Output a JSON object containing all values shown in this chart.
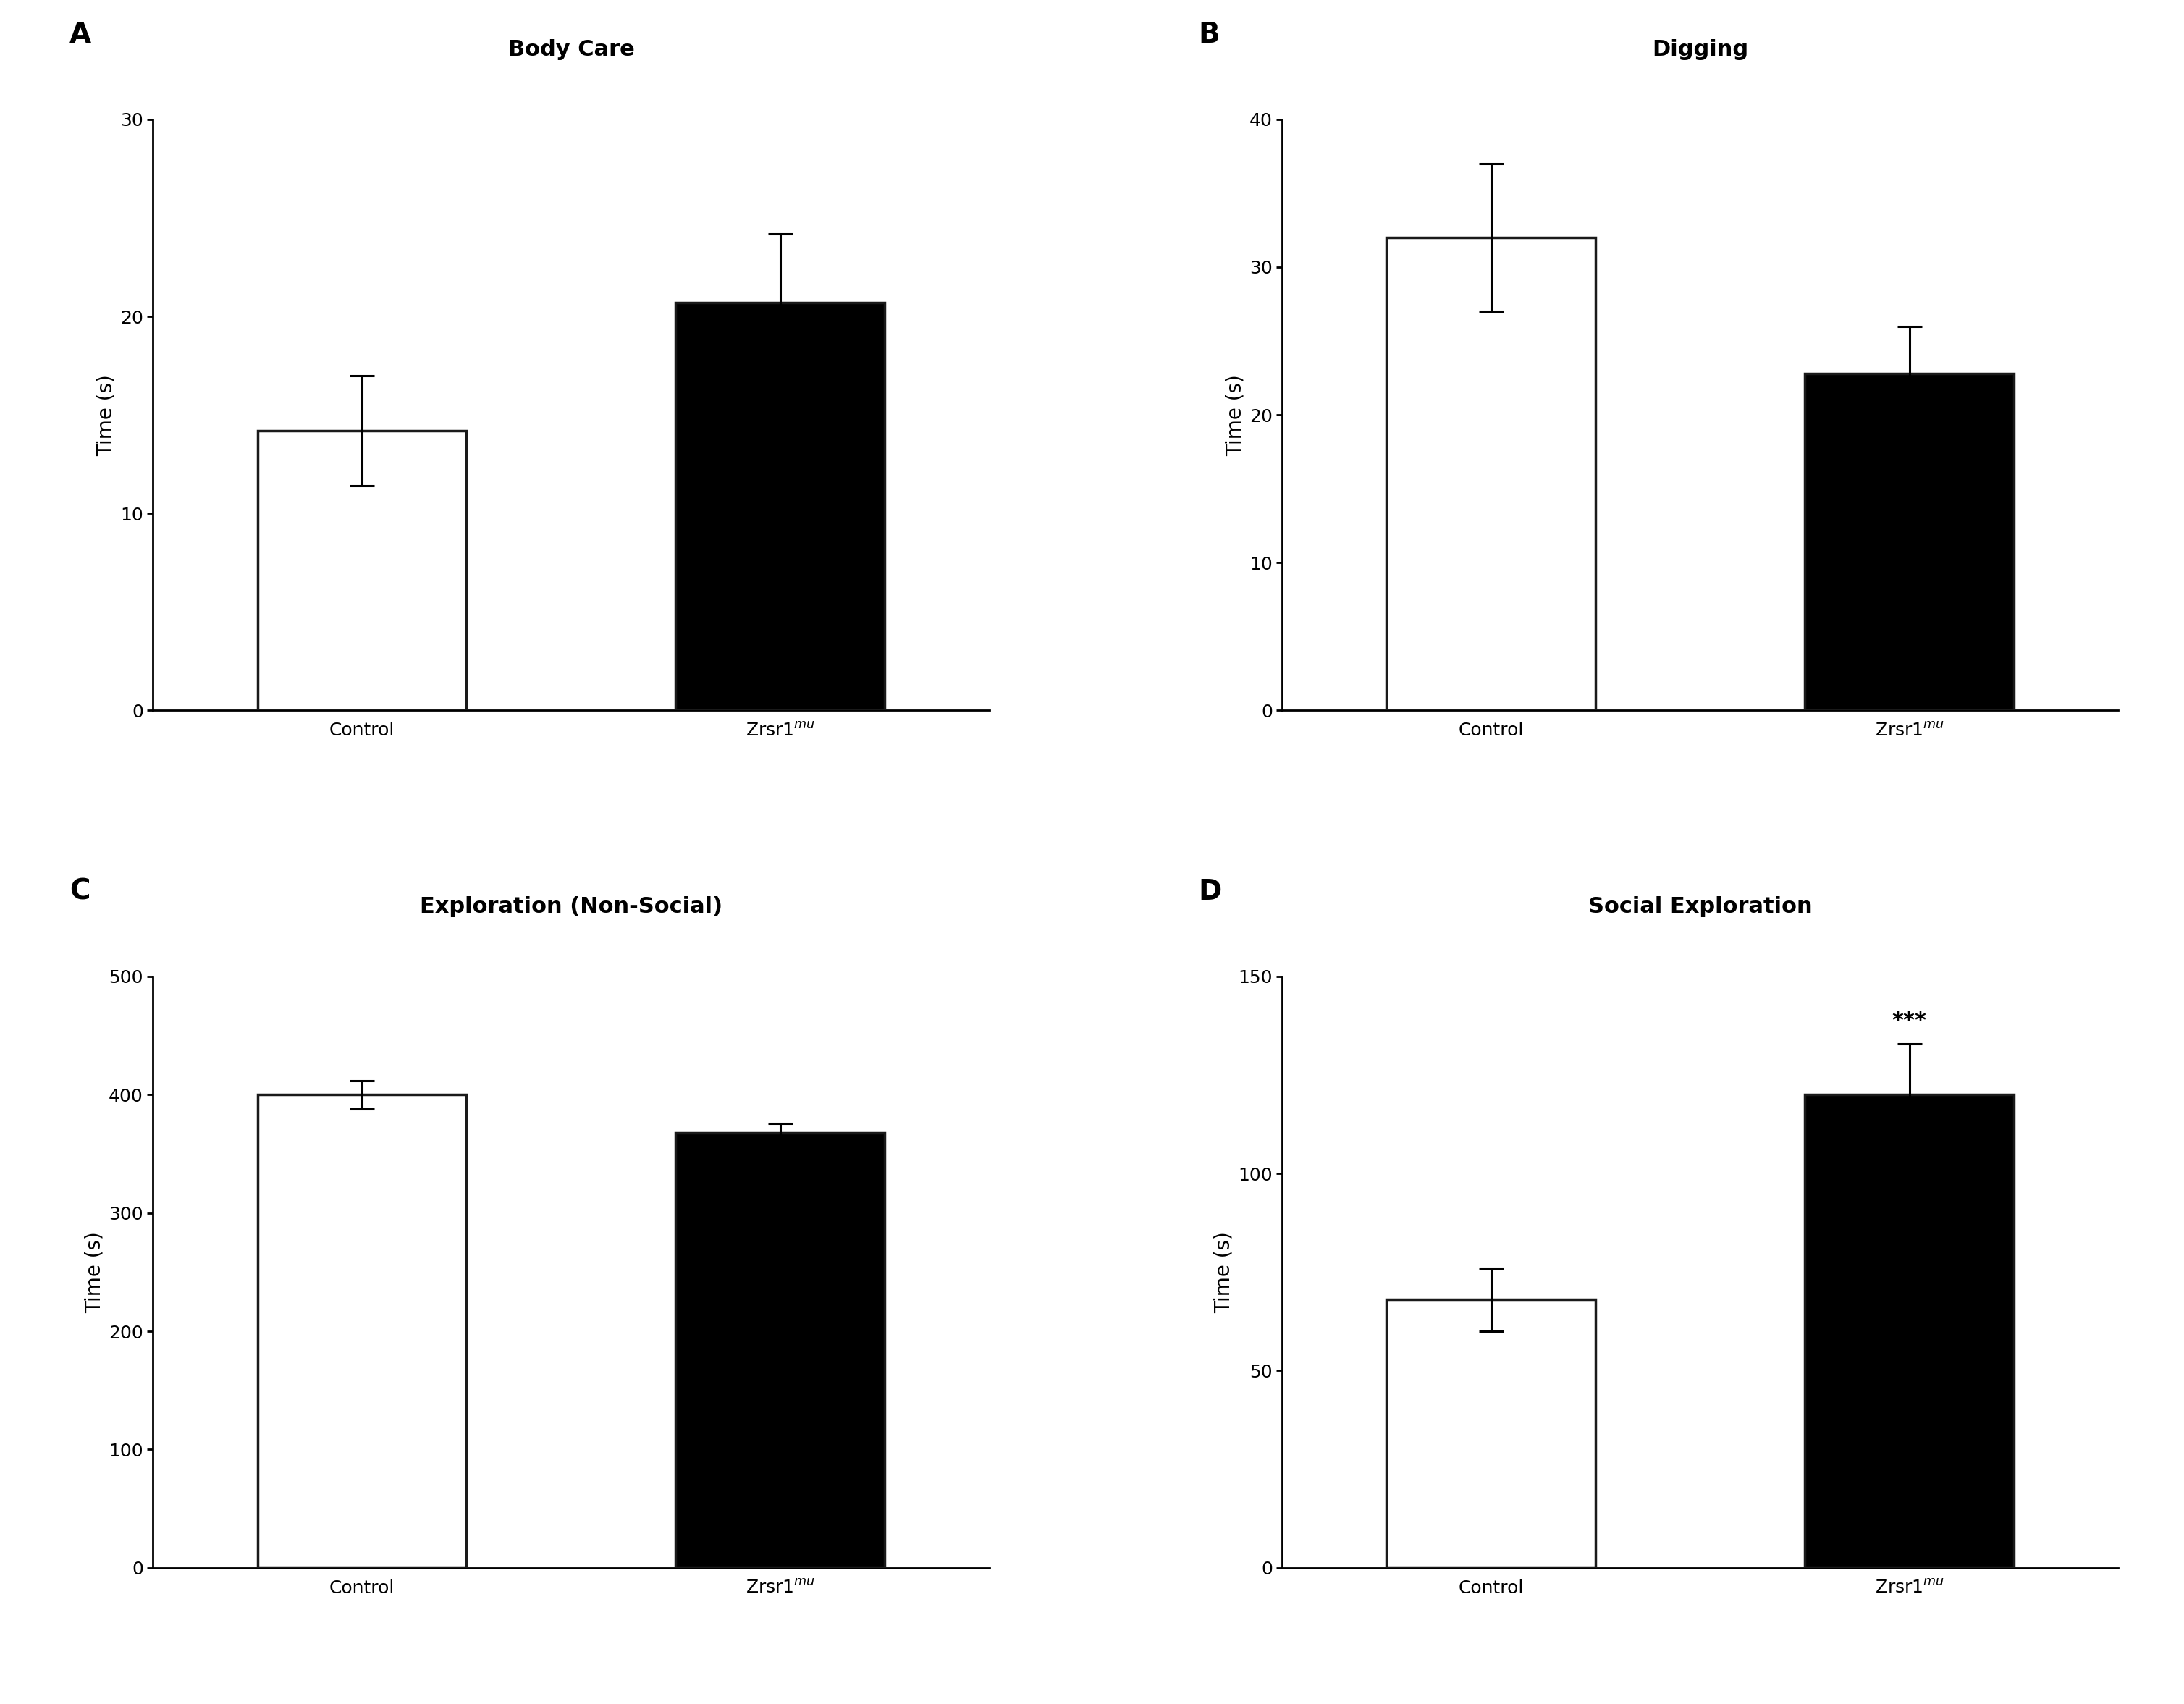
{
  "panels": [
    {
      "label": "A",
      "title": "Body Care",
      "values": [
        14.2,
        20.7
      ],
      "errors": [
        2.8,
        3.5
      ],
      "colors": [
        "white",
        "black"
      ],
      "ylim": [
        0,
        30
      ],
      "yticks": [
        0,
        10,
        20,
        30
      ],
      "ylabel": "Time (s)",
      "significance": "",
      "sig_bar_index": 1
    },
    {
      "label": "B",
      "title": "Digging",
      "values": [
        32.0,
        22.8
      ],
      "errors": [
        5.0,
        3.2
      ],
      "colors": [
        "white",
        "black"
      ],
      "ylim": [
        0,
        40
      ],
      "yticks": [
        0,
        10,
        20,
        30,
        40
      ],
      "ylabel": "Time (s)",
      "significance": "",
      "sig_bar_index": 1
    },
    {
      "label": "C",
      "title": "Exploration (Non-Social)",
      "values": [
        400.0,
        368.0
      ],
      "errors": [
        12.0,
        8.0
      ],
      "colors": [
        "white",
        "black"
      ],
      "ylim": [
        0,
        500
      ],
      "yticks": [
        0,
        100,
        200,
        300,
        400,
        500
      ],
      "ylabel": "Time (s)",
      "significance": "",
      "sig_bar_index": 1
    },
    {
      "label": "D",
      "title": "Social Exploration",
      "values": [
        68.0,
        120.0
      ],
      "errors": [
        8.0,
        13.0
      ],
      "colors": [
        "white",
        "black"
      ],
      "ylim": [
        0,
        150
      ],
      "yticks": [
        0,
        50,
        100,
        150
      ],
      "ylabel": "Time (s)",
      "significance": "***",
      "sig_bar_index": 1
    }
  ],
  "xtick_labels": [
    "Control",
    "Zrsr1$^{mu}$"
  ],
  "bar_width": 0.5,
  "bar_edgecolor": "#1a1a1a",
  "bar_linewidth": 2.5,
  "error_capsize": 12,
  "error_linewidth": 2.2,
  "tick_fontsize": 18,
  "label_fontsize": 20,
  "title_fontsize": 22,
  "panel_label_fontsize": 28,
  "significance_fontsize": 22,
  "background_color": "#ffffff",
  "spine_linewidth": 2.0
}
